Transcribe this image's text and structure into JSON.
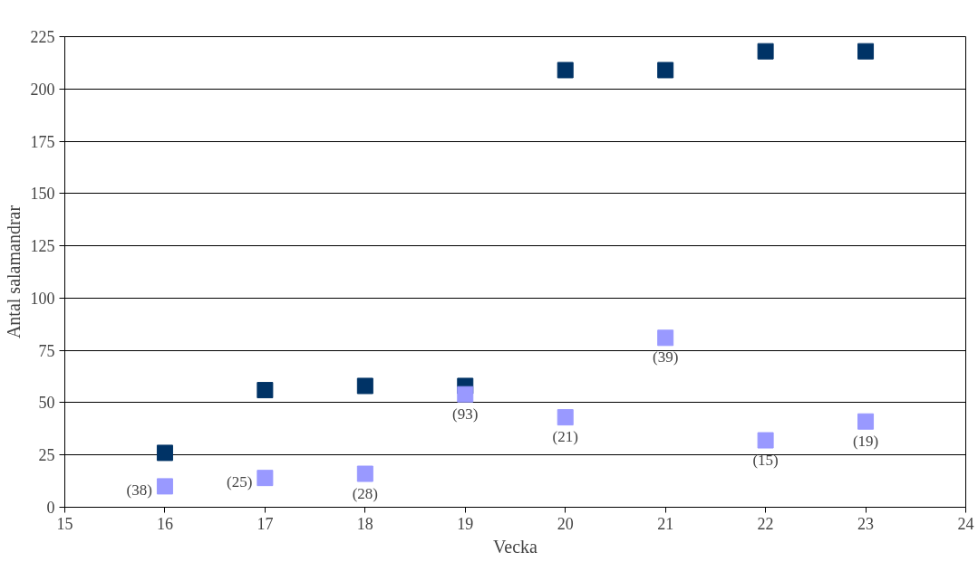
{
  "chart_data": {
    "type": "scatter",
    "xlabel": "Vecka",
    "ylabel": "Antal salamandrar",
    "x": [
      16,
      17,
      18,
      19,
      20,
      21,
      22,
      23
    ],
    "series": [
      {
        "color": "#003366",
        "values": [
          26,
          56,
          58,
          58,
          209,
          209,
          218,
          218
        ]
      },
      {
        "color": "#9999ff",
        "values": [
          10,
          14,
          16,
          54,
          43,
          81,
          32,
          41
        ]
      }
    ],
    "annotations": [
      {
        "text": "(38)",
        "x": 16,
        "y": 10
      },
      {
        "text": "(25)",
        "x": 17,
        "y": 14
      },
      {
        "text": "(28)",
        "x": 18,
        "y": 16
      },
      {
        "text": "(93)",
        "x": 19,
        "y": 54
      },
      {
        "text": "(21)",
        "x": 20,
        "y": 43
      },
      {
        "text": "(39)",
        "x": 21,
        "y": 81
      },
      {
        "text": "(15)",
        "x": 22,
        "y": 32
      },
      {
        "text": "(19)",
        "x": 23,
        "y": 41
      }
    ],
    "xlim": [
      15,
      24
    ],
    "xticks": [
      15,
      16,
      17,
      18,
      19,
      20,
      21,
      22,
      23,
      24
    ],
    "ylim": [
      0,
      225
    ],
    "yticks": [
      0,
      25,
      50,
      75,
      100,
      125,
      150,
      175,
      200,
      225
    ],
    "grid": "y",
    "marker": "square"
  }
}
